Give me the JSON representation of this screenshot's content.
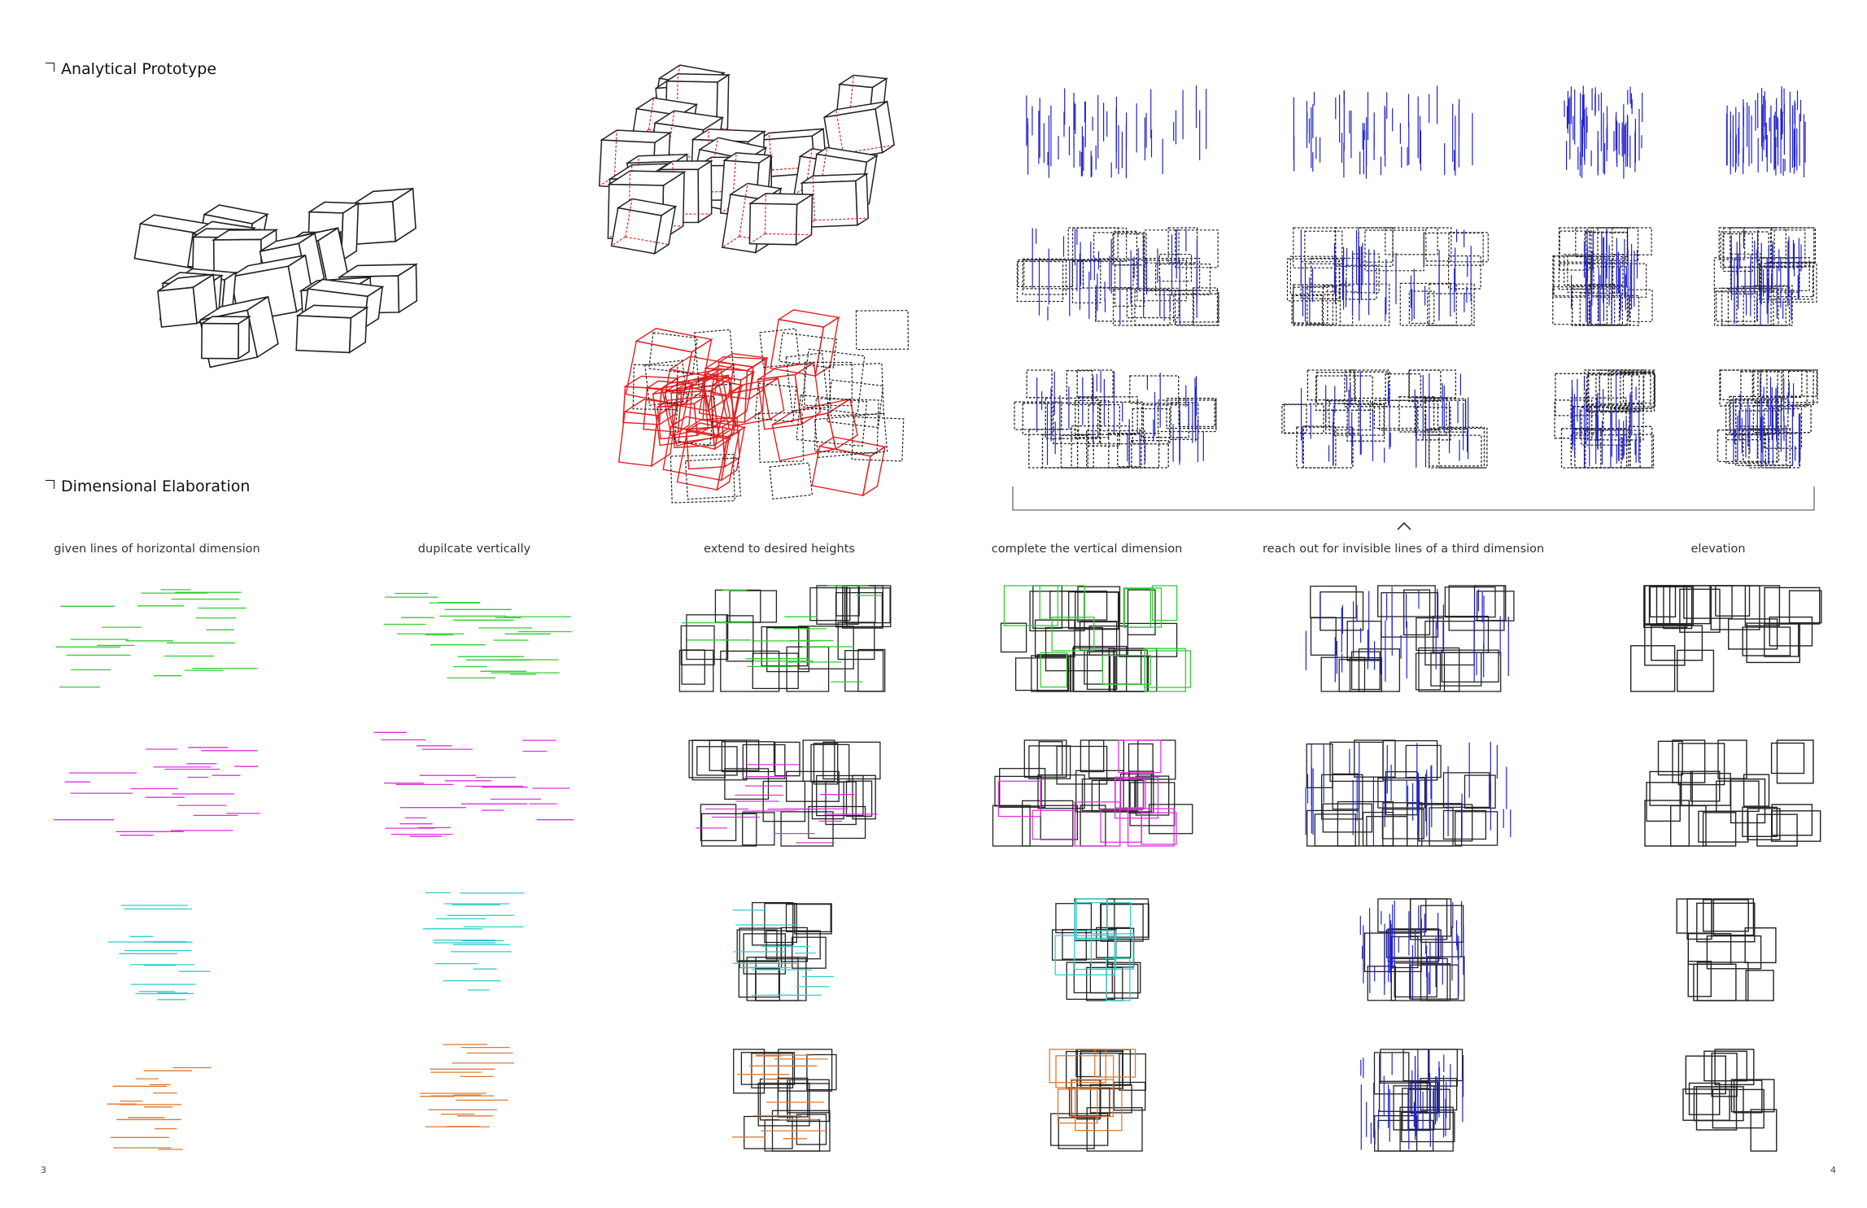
{
  "sections": {
    "analytical_title": "Analytical Prototype",
    "dimensional_title": "Dimensional Elaboration"
  },
  "steps": [
    "given lines of horizontal dimension",
    "dupilcate vertically",
    "extend to desired heights",
    "complete the vertical dimension",
    "reach out for invisible lines of a third dimension",
    "elevation"
  ],
  "pages": {
    "left": "3",
    "right": "4"
  },
  "colors": {
    "green": "#33cc33",
    "magenta": "#dd33dd",
    "cyan": "#33cccc",
    "orange": "#e07830",
    "blue": "#2222cc",
    "red": "#e02020",
    "black": "#222222"
  },
  "rows": [
    "green",
    "magenta",
    "cyan",
    "orange"
  ]
}
